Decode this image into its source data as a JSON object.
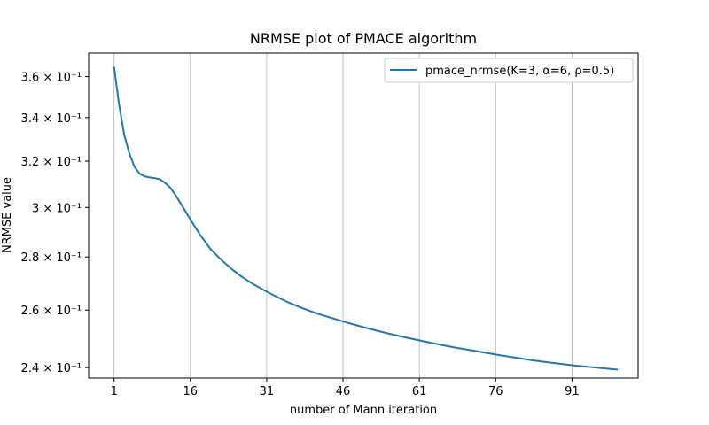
{
  "chart_data": {
    "type": "line",
    "title": "NRMSE plot of PMACE algorithm",
    "xlabel": "number of Mann iteration",
    "ylabel": "NRMSE value",
    "yscale": "log",
    "xlim": [
      -4,
      104
    ],
    "ylim": [
      0.2365,
      0.372
    ],
    "x_ticks": [
      1,
      16,
      31,
      46,
      61,
      76,
      91
    ],
    "y_ticks": [
      {
        "value": 0.24,
        "label": "2.4 × 10⁻¹"
      },
      {
        "value": 0.26,
        "label": "2.6 × 10⁻¹"
      },
      {
        "value": 0.28,
        "label": "2.8 × 10⁻¹"
      },
      {
        "value": 0.3,
        "label": "3 × 10⁻¹"
      },
      {
        "value": 0.32,
        "label": "3.2 × 10⁻¹"
      },
      {
        "value": 0.34,
        "label": "3.4 × 10⁻¹"
      },
      {
        "value": 0.36,
        "label": "3.6 × 10⁻¹"
      }
    ],
    "grid": "vertical",
    "legend_position": "top-right",
    "series": [
      {
        "name": "pmace_nrmse(K=3, α=6, ρ=0.5)",
        "color": "#1f77b4",
        "x": [
          1,
          2,
          3,
          4,
          5,
          6,
          7,
          8,
          9,
          10,
          11,
          12,
          13,
          14,
          15,
          16,
          18,
          20,
          22,
          24,
          26,
          28,
          30,
          32,
          35,
          38,
          41,
          44,
          47,
          50,
          53,
          56,
          59,
          62,
          65,
          68,
          71,
          74,
          77,
          80,
          83,
          86,
          89,
          92,
          95,
          98,
          100
        ],
        "y": [
          0.365,
          0.346,
          0.332,
          0.3235,
          0.3175,
          0.3145,
          0.3133,
          0.3128,
          0.3125,
          0.312,
          0.3105,
          0.3085,
          0.3055,
          0.302,
          0.2985,
          0.295,
          0.2885,
          0.283,
          0.279,
          0.2755,
          0.2725,
          0.27,
          0.2678,
          0.2658,
          0.263,
          0.2607,
          0.2587,
          0.257,
          0.2554,
          0.2539,
          0.2525,
          0.2512,
          0.25,
          0.2489,
          0.2478,
          0.2468,
          0.2459,
          0.245,
          0.2441,
          0.2433,
          0.2425,
          0.2418,
          0.2412,
          0.2406,
          0.2401,
          0.2396,
          0.2393
        ]
      }
    ]
  }
}
